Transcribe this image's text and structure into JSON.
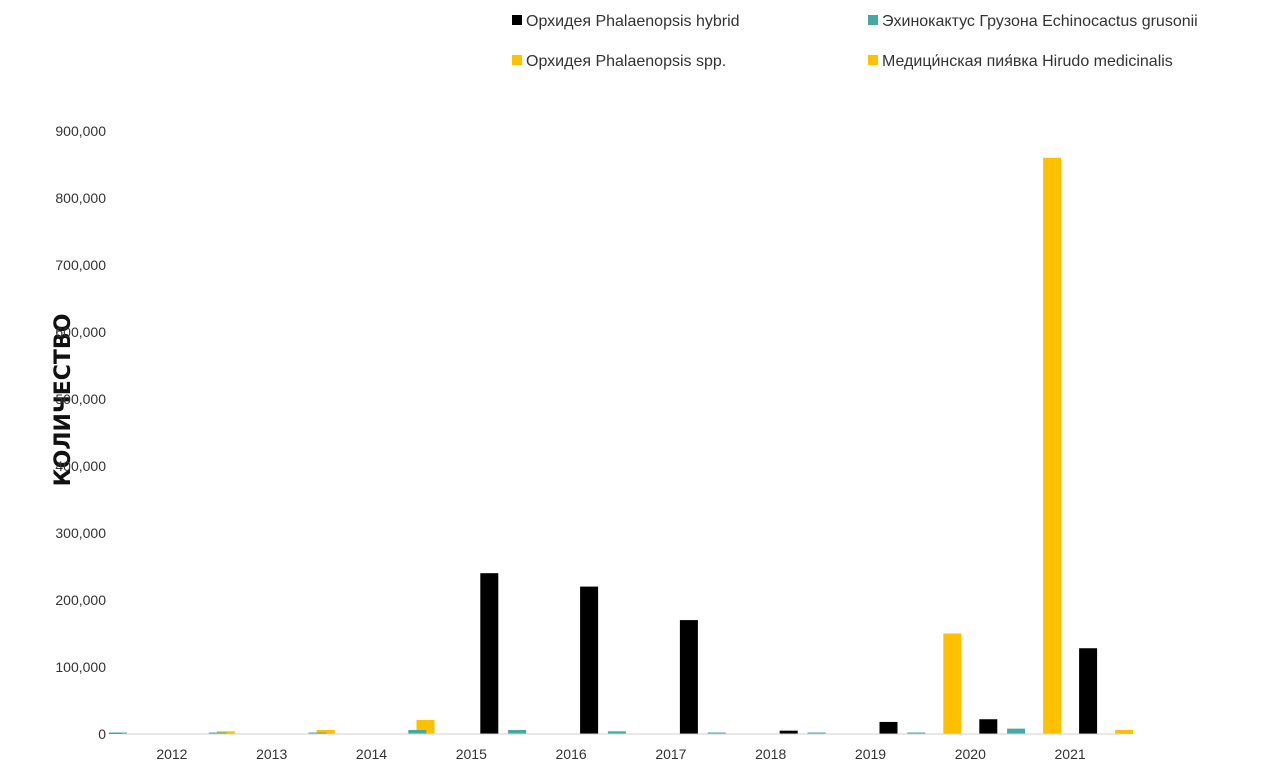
{
  "chart_data": {
    "type": "bar",
    "title": "",
    "xlabel": "",
    "ylabel": "КОЛИЧЕСТВО",
    "ylim": [
      0,
      900000
    ],
    "yticks": [
      0,
      100000,
      200000,
      300000,
      400000,
      500000,
      600000,
      700000,
      800000,
      900000
    ],
    "ytick_labels": [
      "0",
      "100,000",
      "200,000",
      "300,000",
      "400,000",
      "500,000",
      "600,000",
      "700,000",
      "800,000",
      "900,000"
    ],
    "grid": false,
    "legend_position": "top-right",
    "categories": [
      "2012",
      "2013",
      "2014",
      "2015",
      "2016",
      "2017",
      "2018",
      "2019",
      "2020",
      "2021"
    ],
    "series": [
      {
        "name": "Эхинокактус Грузона Echinocactus grusonii",
        "color": "#45aaa4",
        "values": [
          1000,
          1000,
          1000,
          6000,
          6000,
          4000,
          1000,
          1000,
          2000,
          8000
        ]
      },
      {
        "name": "Орхидея Phalaenopsis spp.",
        "color": "#ffc000",
        "values": [
          0,
          0,
          0,
          0,
          0,
          0,
          0,
          0,
          150000,
          860000
        ]
      },
      {
        "name": "Орхидея Phalaenopsis hybrid",
        "color": "#000000",
        "values": [
          0,
          0,
          0,
          240000,
          220000,
          170000,
          5000,
          18000,
          22000,
          128000
        ]
      },
      {
        "name": "Медици́нская пия́вка Hirudo medicinalis",
        "color": "#ffc000",
        "values": [
          4000,
          6000,
          21000,
          0,
          0,
          0,
          0,
          0,
          0,
          6000
        ]
      }
    ]
  }
}
